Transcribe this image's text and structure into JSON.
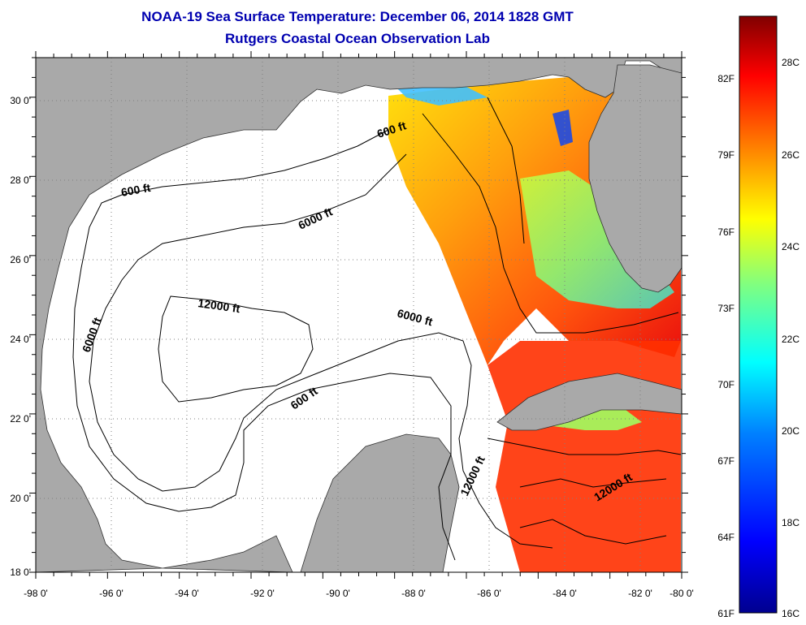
{
  "header": {
    "title": "NOAA-19 Sea Surface Temperature:  December 06, 2014 1828 GMT",
    "subtitle": "Rutgers Coastal Ocean Observation Lab"
  },
  "map": {
    "lon_ticks": [
      "-98 0'",
      "-96 0'",
      "-94 0'",
      "-92 0'",
      "-90 0'",
      "-88 0'",
      "-86 0'",
      "-84 0'",
      "-82 0'",
      "-80 0'"
    ],
    "lat_ticks": [
      "30 0'",
      "28 0'",
      "26 0'",
      "24 0'",
      "22 0'",
      "20 0'",
      "18 0'"
    ],
    "lon_range": [
      -98,
      -80
    ],
    "lat_range": [
      18,
      31
    ],
    "contour_labels": {
      "c600_north": "600 ft",
      "c600_west": "600 ft",
      "c6000_north": "6000 ft",
      "c6000_west": "6000 ft",
      "c6000_east": "6000 ft",
      "c12000_center": "12000 ft",
      "c600_yucatan": "600 ft",
      "c12000_strait": "12000 ft",
      "c12000_caribbean": "12000 ft"
    },
    "colors": {
      "land": "#a9a9a9",
      "ocean_nodata": "#ffffff",
      "grid": "#808080"
    }
  },
  "colorbar": {
    "fahrenheit_labels": [
      "82F",
      "79F",
      "76F",
      "73F",
      "70F",
      "67F",
      "64F",
      "61F"
    ],
    "celsius_labels": [
      "28C",
      "26C",
      "24C",
      "22C",
      "20C",
      "18C",
      "16C"
    ],
    "range_c": [
      16,
      29.5
    ],
    "colors": [
      "#00008f",
      "#0000ff",
      "#0080ff",
      "#00ffff",
      "#80ff80",
      "#ffff00",
      "#ff8000",
      "#ff0000",
      "#800000"
    ]
  }
}
